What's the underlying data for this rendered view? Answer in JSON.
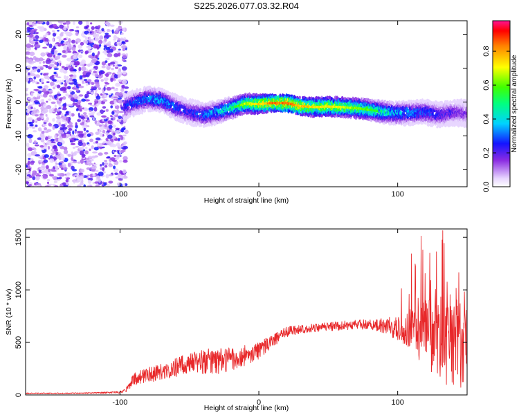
{
  "title": "S225.2026.077.03.32.R04",
  "colors": {
    "snr_line": "#e8282a",
    "frame": "#000000"
  },
  "chart_data": [
    {
      "type": "heatmap",
      "name": "spectrogram",
      "xlabel": "Height of straight line (km)",
      "ylabel": "Frequency (Hz)",
      "xlim": [
        -168,
        150
      ],
      "ylim": [
        -25,
        24
      ],
      "x_ticks": [
        -100,
        0,
        100
      ],
      "y_ticks": [
        -20,
        -10,
        0,
        10,
        20
      ],
      "colorbar": {
        "label": "Normalized spectral amplitude",
        "range": [
          0,
          0.98
        ],
        "ticks": [
          0.0,
          0.2,
          0.4,
          0.6,
          0.8
        ],
        "colormap": "rainbow (white-purple-blue-cyan-green-yellow-red-magenta)"
      },
      "noise_region_x": [
        -168,
        -97
      ],
      "ridge": {
        "x": [
          -97,
          -90,
          -80,
          -70,
          -60,
          -50,
          -40,
          -30,
          -20,
          -10,
          0,
          10,
          20,
          30,
          40,
          50,
          60,
          70,
          80,
          90,
          100,
          110,
          120,
          130,
          140,
          150
        ],
        "freq": [
          -1.5,
          -0.3,
          1.0,
          0.5,
          -1.5,
          -3.0,
          -3.8,
          -3.0,
          -1.8,
          -0.5,
          -0.6,
          -0.3,
          -0.3,
          -1.2,
          -1.5,
          -1.3,
          -1.5,
          -1.8,
          -2.3,
          -3.0,
          -3.3,
          -3.2,
          -3.0,
          -3.8,
          -3.0,
          -3.5
        ],
        "amplitude": [
          0.3,
          0.35,
          0.4,
          0.42,
          0.35,
          0.3,
          0.38,
          0.45,
          0.55,
          0.72,
          0.8,
          0.92,
          0.95,
          0.85,
          0.78,
          0.8,
          0.75,
          0.7,
          0.65,
          0.55,
          0.45,
          0.4,
          0.35,
          0.3,
          0.25,
          0.2
        ]
      }
    },
    {
      "type": "line",
      "name": "snr",
      "xlabel": "Height of straight line (km)",
      "ylabel": "SNR (10 * v/v)",
      "xlim": [
        -168,
        150
      ],
      "ylim": [
        0,
        1580
      ],
      "x_ticks": [
        -100,
        0,
        100
      ],
      "y_ticks": [
        0,
        500,
        1000,
        1500
      ],
      "series": [
        {
          "name": "SNR",
          "x": [
            -168,
            -140,
            -120,
            -100,
            -95,
            -90,
            -80,
            -70,
            -60,
            -50,
            -40,
            -30,
            -20,
            -10,
            0,
            10,
            20,
            30,
            40,
            50,
            60,
            70,
            80,
            90,
            100,
            110,
            120,
            130,
            140,
            150
          ],
          "mean": [
            15,
            15,
            18,
            25,
            60,
            150,
            190,
            220,
            260,
            300,
            320,
            320,
            340,
            380,
            420,
            520,
            600,
            630,
            640,
            650,
            660,
            670,
            670,
            660,
            640,
            620,
            580,
            530,
            500,
            480
          ],
          "noise": [
            5,
            5,
            6,
            10,
            30,
            60,
            70,
            80,
            90,
            100,
            120,
            120,
            120,
            100,
            80,
            60,
            50,
            45,
            40,
            40,
            45,
            45,
            50,
            70,
            130,
            200,
            320,
            420,
            420,
            420
          ]
        }
      ]
    }
  ]
}
